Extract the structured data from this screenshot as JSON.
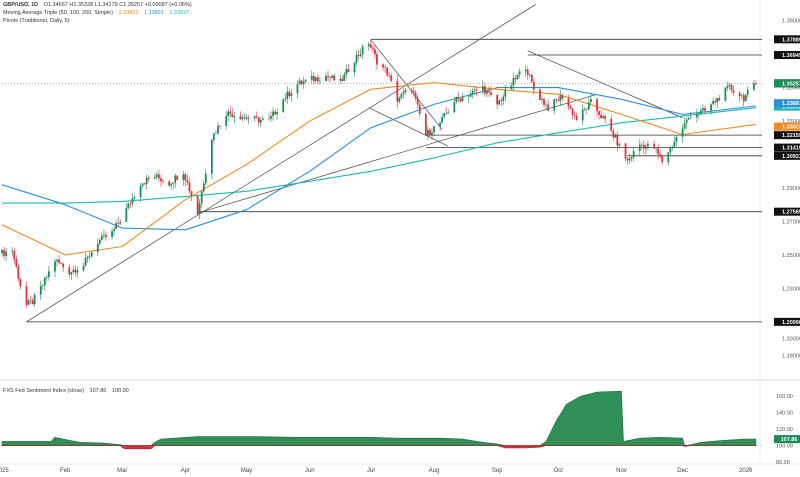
{
  "header": {
    "symbol": "GBP/USD, 1D",
    "ohlc": "O1.34667  H1.35328  L1.34179  C1.35257  +0.00087 (+0.06%)",
    "ma_label": "Moving Average Triple (50, 100, 200, Simple)",
    "ma_values": [
      "1.33822",
      "1.33891",
      "1.33027"
    ],
    "pivots_label": "Pivots (Traditional, Daily, 5)",
    "indicator_label": "FXS Fed Sentiment Index (close)",
    "indicator_values": [
      "107.86",
      "100.00"
    ]
  },
  "chart_data": [
    {
      "type": "candlestick",
      "title": "GBP/USD, 1D",
      "ylim": [
        1.18,
        1.4
      ],
      "y_ticks": [
        "1.39000",
        "1.37000",
        "1.35000",
        "1.33000",
        "1.31000",
        "1.29000",
        "1.27000",
        "1.25000",
        "1.23000",
        "1.21000",
        "1.20000",
        "1.19000"
      ],
      "x_ticks": [
        "2025",
        "Feb",
        "Mar",
        "Apr",
        "May",
        "Jun",
        "Jul",
        "Aug",
        "Sep",
        "Oct",
        "Nov",
        "Dec",
        "2026"
      ],
      "x_tick_dates": [
        "2025-01-01",
        "2025-02-01",
        "2025-03-01",
        "2025-04-01",
        "2025-05-01",
        "2025-06-01",
        "2025-07-01",
        "2025-08-01",
        "2025-09-01",
        "2025-10-01",
        "2025-11-01",
        "2025-12-01",
        "2026-01-01"
      ],
      "x_range": [
        "2024-12-31",
        "2026-01-08"
      ],
      "colors": {
        "up": "#1e8c57",
        "down": "#e0313c",
        "ma50": "#f08a24",
        "ma100": "#2d8fd6",
        "ma200": "#1ab9b0",
        "trend": "#444444"
      },
      "price_points": [
        [
          "2025-01-01",
          1.251
        ],
        [
          "2025-01-06",
          1.253
        ],
        [
          "2025-01-10",
          1.232
        ],
        [
          "2025-01-13",
          1.22
        ],
        [
          "2025-01-16",
          1.222
        ],
        [
          "2025-01-21",
          1.232
        ],
        [
          "2025-01-27",
          1.247
        ],
        [
          "2025-02-03",
          1.24
        ],
        [
          "2025-02-10",
          1.244
        ],
        [
          "2025-02-17",
          1.258
        ],
        [
          "2025-02-24",
          1.263
        ],
        [
          "2025-03-03",
          1.277
        ],
        [
          "2025-03-10",
          1.293
        ],
        [
          "2025-03-17",
          1.297
        ],
        [
          "2025-03-24",
          1.293
        ],
        [
          "2025-03-31",
          1.3
        ],
        [
          "2025-04-07",
          1.275
        ],
        [
          "2025-04-14",
          1.32
        ],
        [
          "2025-04-21",
          1.335
        ],
        [
          "2025-04-28",
          1.333
        ],
        [
          "2025-05-05",
          1.331
        ],
        [
          "2025-05-12",
          1.33
        ],
        [
          "2025-05-19",
          1.343
        ],
        [
          "2025-05-26",
          1.352
        ],
        [
          "2025-06-02",
          1.355
        ],
        [
          "2025-06-09",
          1.357
        ],
        [
          "2025-06-16",
          1.353
        ],
        [
          "2025-06-23",
          1.367
        ],
        [
          "2025-06-30",
          1.377
        ],
        [
          "2025-07-04",
          1.366
        ],
        [
          "2025-07-09",
          1.359
        ],
        [
          "2025-07-14",
          1.343
        ],
        [
          "2025-07-21",
          1.35
        ],
        [
          "2025-07-28",
          1.322
        ],
        [
          "2025-08-04",
          1.329
        ],
        [
          "2025-08-11",
          1.342
        ],
        [
          "2025-08-18",
          1.346
        ],
        [
          "2025-08-25",
          1.35
        ],
        [
          "2025-09-01",
          1.34
        ],
        [
          "2025-09-08",
          1.352
        ],
        [
          "2025-09-15",
          1.363
        ],
        [
          "2025-09-19",
          1.349
        ],
        [
          "2025-09-26",
          1.338
        ],
        [
          "2025-10-03",
          1.345
        ],
        [
          "2025-10-10",
          1.331
        ],
        [
          "2025-10-17",
          1.341
        ],
        [
          "2025-10-24",
          1.33
        ],
        [
          "2025-10-31",
          1.315
        ],
        [
          "2025-11-04",
          1.306
        ],
        [
          "2025-11-10",
          1.316
        ],
        [
          "2025-11-17",
          1.314
        ],
        [
          "2025-11-21",
          1.306
        ],
        [
          "2025-11-28",
          1.32
        ],
        [
          "2025-12-05",
          1.334
        ],
        [
          "2025-12-12",
          1.336
        ],
        [
          "2025-12-17",
          1.342
        ],
        [
          "2025-12-24",
          1.35
        ],
        [
          "2025-12-31",
          1.344
        ],
        [
          "2026-01-06",
          1.352
        ]
      ],
      "ma50": [
        [
          "2025-01-01",
          1.268
        ],
        [
          "2025-02-01",
          1.25
        ],
        [
          "2025-03-01",
          1.255
        ],
        [
          "2025-04-01",
          1.283
        ],
        [
          "2025-05-01",
          1.304
        ],
        [
          "2025-06-01",
          1.33
        ],
        [
          "2025-07-01",
          1.349
        ],
        [
          "2025-08-01",
          1.353
        ],
        [
          "2025-09-01",
          1.349
        ],
        [
          "2025-10-01",
          1.346
        ],
        [
          "2025-11-01",
          1.334
        ],
        [
          "2025-12-01",
          1.322
        ],
        [
          "2026-01-06",
          1.328
        ]
      ],
      "ma100": [
        [
          "2025-01-01",
          1.292
        ],
        [
          "2025-02-01",
          1.28
        ],
        [
          "2025-03-01",
          1.266
        ],
        [
          "2025-04-01",
          1.265
        ],
        [
          "2025-05-01",
          1.277
        ],
        [
          "2025-06-01",
          1.3
        ],
        [
          "2025-07-01",
          1.326
        ],
        [
          "2025-08-01",
          1.34
        ],
        [
          "2025-09-01",
          1.35
        ],
        [
          "2025-10-01",
          1.35
        ],
        [
          "2025-11-01",
          1.343
        ],
        [
          "2025-12-01",
          1.334
        ],
        [
          "2026-01-06",
          1.339
        ]
      ],
      "ma200": [
        [
          "2025-01-01",
          1.281
        ],
        [
          "2025-02-01",
          1.281
        ],
        [
          "2025-03-01",
          1.282
        ],
        [
          "2025-04-01",
          1.285
        ],
        [
          "2025-05-01",
          1.288
        ],
        [
          "2025-06-01",
          1.294
        ],
        [
          "2025-07-01",
          1.3
        ],
        [
          "2025-08-01",
          1.308
        ],
        [
          "2025-09-01",
          1.317
        ],
        [
          "2025-10-01",
          1.323
        ],
        [
          "2025-11-01",
          1.329
        ],
        [
          "2025-12-01",
          1.333
        ],
        [
          "2026-01-06",
          1.338
        ]
      ],
      "trendlines": [
        [
          [
            "2025-01-13",
            1.21
          ],
          [
            "2025-09-20",
            1.3998
          ]
        ],
        [
          [
            "2025-04-07",
            1.275
          ],
          [
            "2025-10-20",
            1.346
          ]
        ],
        [
          [
            "2025-06-30",
            1.338
          ],
          [
            "2025-08-08",
            1.315
          ]
        ],
        [
          [
            "2025-07-01",
            1.3785
          ],
          [
            "2025-08-05",
            1.325
          ]
        ],
        [
          [
            "2025-09-16",
            1.372
          ],
          [
            "2025-12-01",
            1.332
          ]
        ]
      ],
      "levels": [
        {
          "value": 1.37889,
          "label": "1.37889",
          "start": "2025-07-01",
          "style": "line"
        },
        {
          "value": 1.36949,
          "label": "1.36949",
          "start": "2025-09-16",
          "style": "line"
        },
        {
          "value": 1.35257,
          "label": "1.35257",
          "start": "2025-01-01",
          "style": "dotted"
        },
        {
          "value": 1.32159,
          "label": "1.32159",
          "start": "2025-07-28",
          "style": "line"
        },
        {
          "value": 1.31415,
          "label": "1.31415",
          "start": "2025-07-28",
          "style": "line"
        },
        {
          "value": 1.30923,
          "label": "1.30923",
          "start": "2025-11-04",
          "style": "line"
        },
        {
          "value": 1.27585,
          "label": "1.27585",
          "start": "2025-04-07",
          "style": "line"
        },
        {
          "value": 1.20998,
          "label": "1.20998",
          "start": "2025-01-13",
          "style": "line"
        }
      ],
      "price_label": {
        "value": 1.35257,
        "label": "1.35257",
        "color": "#1e8c57"
      },
      "ma_labels": [
        {
          "value": 1.33862,
          "label": "1.33862",
          "color": "#1ab9b0"
        },
        {
          "value": 1.33891,
          "label": "1.33891",
          "color": "#2d8fd6"
        },
        {
          "value": 1.33023,
          "label": "1.33023",
          "color": "#f08a24"
        }
      ]
    },
    {
      "type": "area",
      "title": "FXS Fed Sentiment Index (close)",
      "ylim": [
        80,
        170
      ],
      "y_ticks": [
        "160.00",
        "140.00",
        "120.00",
        "100.00",
        "80.00"
      ],
      "baseline": 100,
      "colors": {
        "above": "#2f8f57",
        "below": "#d9303b",
        "current": "#1e8c57"
      },
      "current_value": "107.86",
      "points": [
        [
          "2025-01-01",
          105
        ],
        [
          "2025-01-25",
          105
        ],
        [
          "2025-01-27",
          110
        ],
        [
          "2025-01-31",
          108
        ],
        [
          "2025-02-08",
          104
        ],
        [
          "2025-02-20",
          103
        ],
        [
          "2025-02-28",
          101
        ],
        [
          "2025-03-02",
          96
        ],
        [
          "2025-03-15",
          96
        ],
        [
          "2025-03-17",
          104
        ],
        [
          "2025-03-20",
          108
        ],
        [
          "2025-04-02",
          110
        ],
        [
          "2025-04-07",
          111
        ],
        [
          "2025-05-05",
          111
        ],
        [
          "2025-05-25",
          110
        ],
        [
          "2025-06-15",
          110
        ],
        [
          "2025-07-01",
          110
        ],
        [
          "2025-07-15",
          109
        ],
        [
          "2025-08-05",
          109
        ],
        [
          "2025-08-15",
          108
        ],
        [
          "2025-08-25",
          104
        ],
        [
          "2025-09-01",
          102
        ],
        [
          "2025-09-05",
          97
        ],
        [
          "2025-09-15",
          97
        ],
        [
          "2025-09-22",
          98
        ],
        [
          "2025-09-25",
          105
        ],
        [
          "2025-09-30",
          130
        ],
        [
          "2025-10-05",
          150
        ],
        [
          "2025-10-12",
          160
        ],
        [
          "2025-10-20",
          165
        ],
        [
          "2025-10-30",
          166
        ],
        [
          "2025-11-01",
          166
        ],
        [
          "2025-11-02",
          105
        ],
        [
          "2025-11-10",
          109
        ],
        [
          "2025-11-20",
          110
        ],
        [
          "2025-12-01",
          109
        ],
        [
          "2025-12-02",
          99
        ],
        [
          "2025-12-05",
          101
        ],
        [
          "2025-12-10",
          104
        ],
        [
          "2025-12-20",
          106
        ],
        [
          "2025-12-31",
          108
        ],
        [
          "2026-01-06",
          108
        ]
      ]
    }
  ]
}
